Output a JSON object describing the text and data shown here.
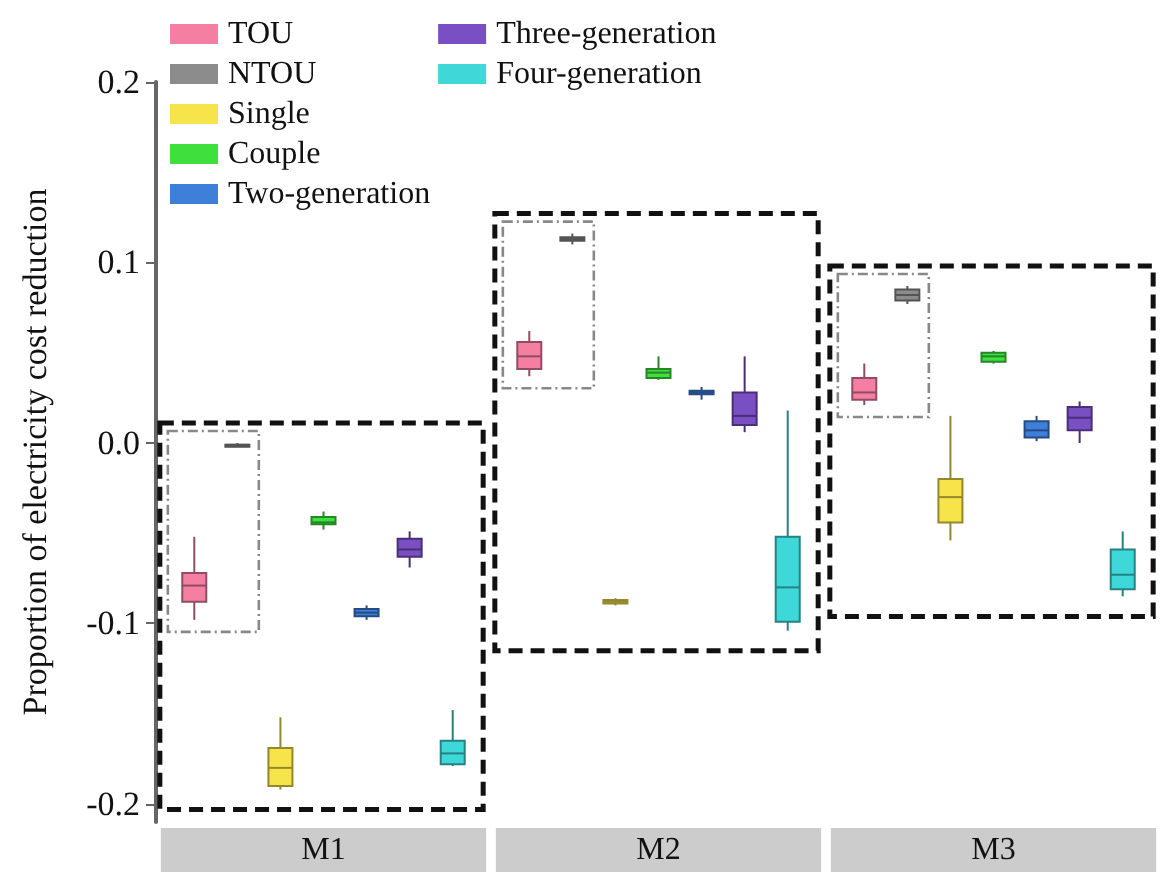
{
  "chart_data": {
    "type": "box",
    "ylabel": "Proportion of electricity cost reduction",
    "categories": [
      "M1",
      "M2",
      "M3"
    ],
    "ylim": [
      -0.21,
      0.2
    ],
    "yticks": [
      {
        "value": -0.2,
        "label": "-0.2"
      },
      {
        "value": -0.1,
        "label": "-0.1"
      },
      {
        "value": 0,
        "label": "0.0"
      },
      {
        "value": 0.1,
        "label": "0.1"
      },
      {
        "value": 0.2,
        "label": "0.2"
      }
    ],
    "legend": "top left",
    "series": [
      {
        "name": "TOU",
        "color": "#f47fa2",
        "boxes": [
          {
            "low": -0.098,
            "q1": -0.088,
            "median": -0.079,
            "q3": -0.072,
            "high": -0.052
          },
          {
            "low": 0.037,
            "q1": 0.041,
            "median": 0.048,
            "q3": 0.056,
            "high": 0.062
          },
          {
            "low": 0.021,
            "q1": 0.024,
            "median": 0.028,
            "q3": 0.036,
            "high": 0.044
          }
        ]
      },
      {
        "name": "NTOU",
        "color": "#8c8c8c",
        "boxes": [
          {
            "low": -0.002,
            "q1": -0.001,
            "median": -0.001,
            "q3": -0.001,
            "high": 0
          },
          {
            "low": 0.11,
            "q1": 0.112,
            "median": 0.113,
            "q3": 0.114,
            "high": 0.116
          },
          {
            "low": 0.077,
            "q1": 0.079,
            "median": 0.082,
            "q3": 0.085,
            "high": 0.087
          }
        ]
      },
      {
        "name": "Single",
        "color": "#f7e34a",
        "boxes": [
          {
            "low": -0.192,
            "q1": -0.19,
            "median": -0.18,
            "q3": -0.169,
            "high": -0.152
          },
          {
            "low": -0.09,
            "q1": -0.089,
            "median": -0.088,
            "q3": -0.087,
            "high": -0.086
          },
          {
            "low": -0.054,
            "q1": -0.044,
            "median": -0.03,
            "q3": -0.02,
            "high": 0.015
          }
        ]
      },
      {
        "name": "Couple",
        "color": "#3ee03e",
        "boxes": [
          {
            "low": -0.048,
            "q1": -0.045,
            "median": -0.044,
            "q3": -0.041,
            "high": -0.038
          },
          {
            "low": 0.035,
            "q1": 0.036,
            "median": 0.039,
            "q3": 0.041,
            "high": 0.048
          },
          {
            "low": 0.044,
            "q1": 0.045,
            "median": 0.048,
            "q3": 0.05,
            "high": 0.051
          }
        ]
      },
      {
        "name": "Two-generation",
        "color": "#3d7fd9",
        "boxes": [
          {
            "low": -0.098,
            "q1": -0.096,
            "median": -0.094,
            "q3": -0.092,
            "high": -0.09
          },
          {
            "low": 0.024,
            "q1": 0.027,
            "median": 0.028,
            "q3": 0.029,
            "high": 0.031
          },
          {
            "low": 0.001,
            "q1": 0.003,
            "median": 0.007,
            "q3": 0.012,
            "high": 0.015
          }
        ]
      },
      {
        "name": "Three-generation",
        "color": "#7a4fc4",
        "boxes": [
          {
            "low": -0.069,
            "q1": -0.063,
            "median": -0.059,
            "q3": -0.053,
            "high": -0.049
          },
          {
            "low": 0.006,
            "q1": 0.01,
            "median": 0.015,
            "q3": 0.028,
            "high": 0.048
          },
          {
            "low": 0,
            "q1": 0.007,
            "median": 0.014,
            "q3": 0.02,
            "high": 0.023
          }
        ]
      },
      {
        "name": "Four-generation",
        "color": "#3fd8d8",
        "boxes": [
          {
            "low": -0.179,
            "q1": -0.178,
            "median": -0.172,
            "q3": -0.165,
            "high": -0.148
          },
          {
            "low": -0.104,
            "q1": -0.099,
            "median": -0.08,
            "q3": -0.052,
            "high": 0.018
          },
          {
            "low": -0.085,
            "q1": -0.081,
            "median": -0.073,
            "q3": -0.059,
            "high": -0.049
          }
        ]
      }
    ]
  }
}
